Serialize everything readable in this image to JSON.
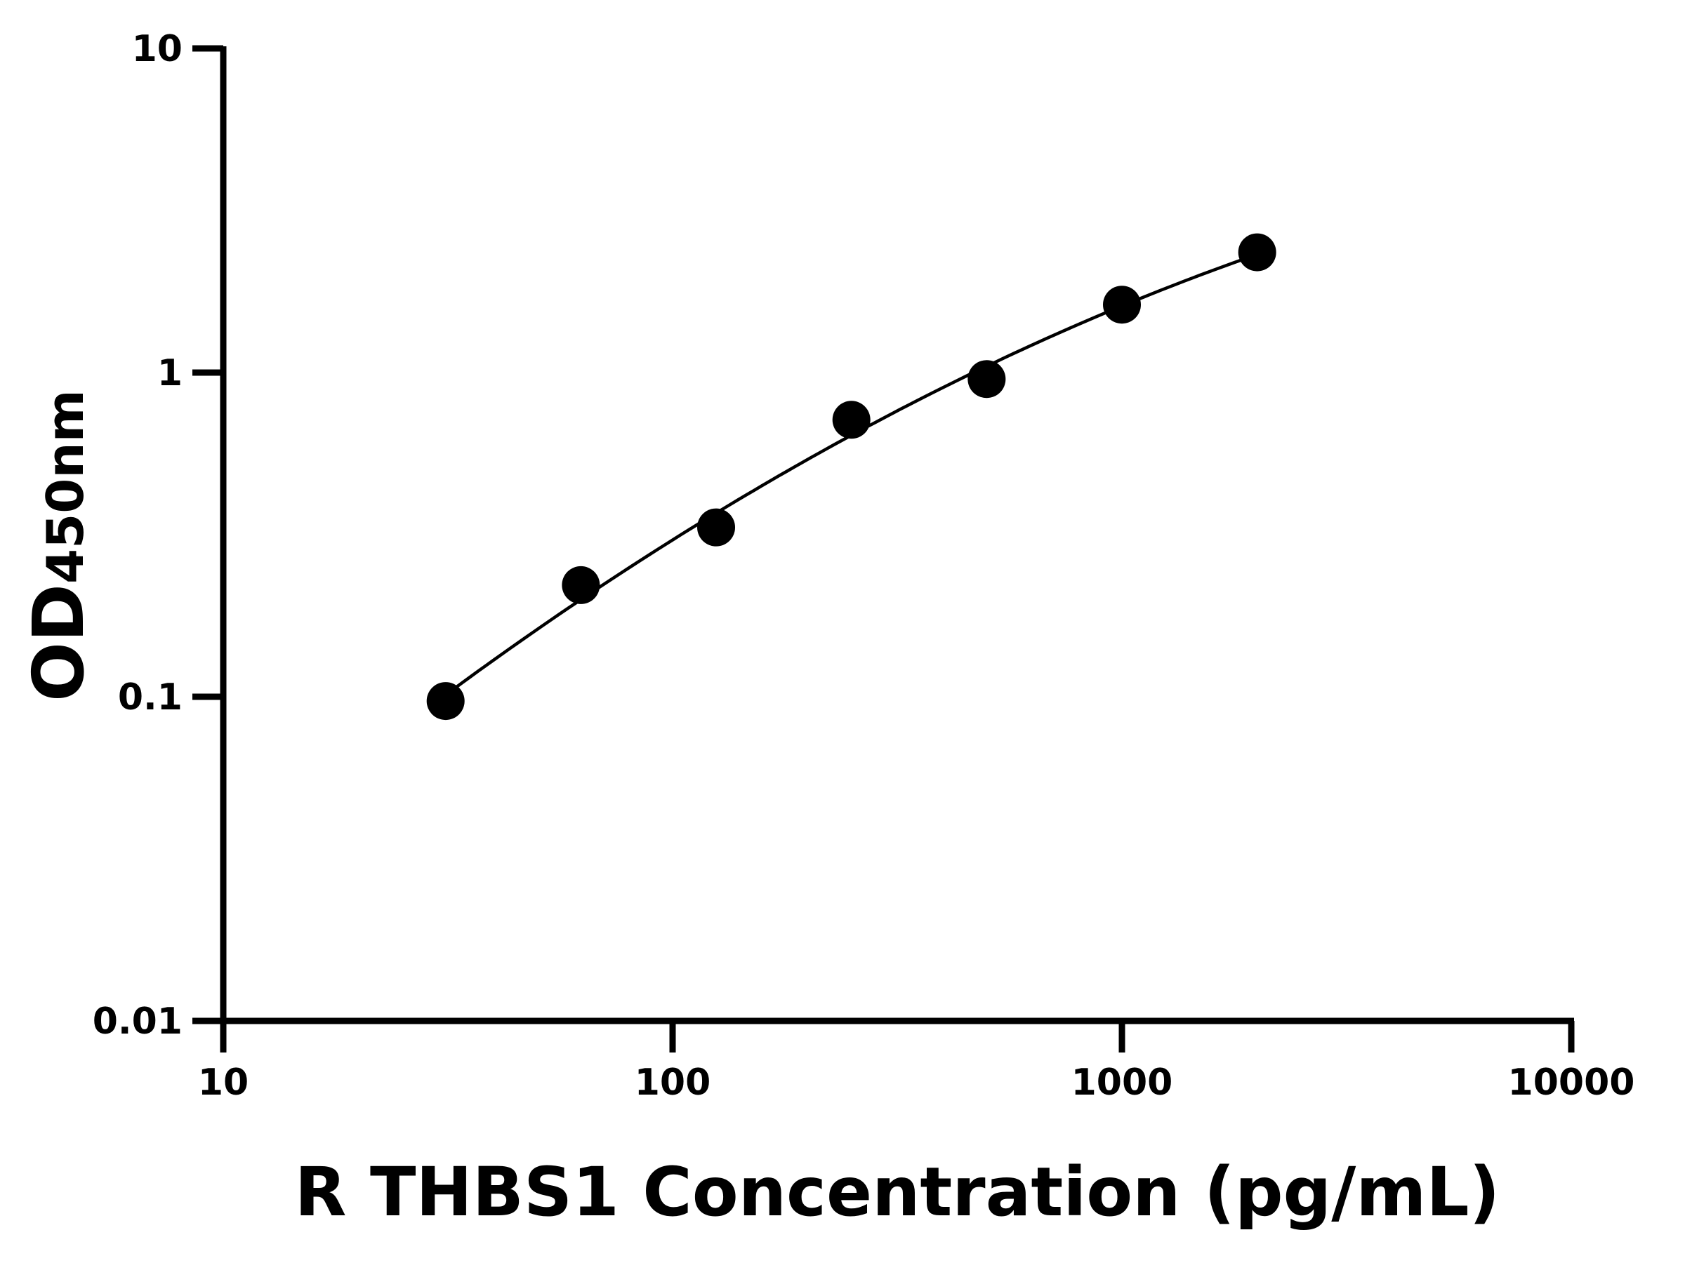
{
  "chart_data": {
    "type": "scatter",
    "title": "",
    "xlabel": "R THBS1 Concentration (pg/mL)",
    "ylabel": "OD",
    "ylabel_subscript": "450nm",
    "xscale": "log",
    "yscale": "log",
    "xlim": [
      10,
      10000
    ],
    "ylim": [
      0.01,
      10
    ],
    "x_ticks": [
      "10",
      "100",
      "1000",
      "10000"
    ],
    "y_ticks": [
      "0.01",
      "0.1",
      "1",
      "10"
    ],
    "grid": false,
    "fit_curve": true,
    "colors": {
      "points": "#000000",
      "curve": "#000000",
      "axes": "#000000"
    },
    "series": [
      {
        "x": [
          31.25,
          62.5,
          125,
          250,
          500,
          1000,
          2000
        ],
        "y": [
          0.097,
          0.221,
          0.333,
          0.715,
          0.955,
          1.62,
          2.35
        ]
      }
    ]
  }
}
